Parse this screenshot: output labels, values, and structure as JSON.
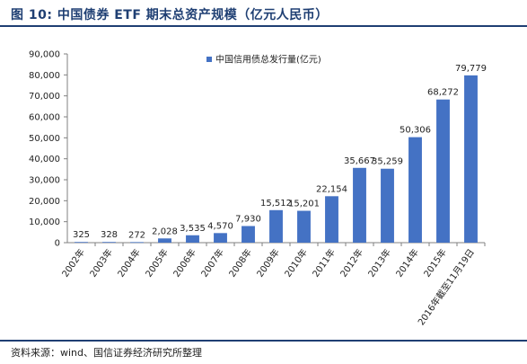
{
  "header": {
    "title": "图 10:  中国债券 ETF 期末总资产规模（亿元人民币）"
  },
  "footer": {
    "source": "资料来源：wind、国信证券经济研究所整理"
  },
  "chart_data": {
    "type": "bar",
    "categories": [
      "2002年",
      "2003年",
      "2004年",
      "2005年",
      "2006年",
      "2007年",
      "2008年",
      "2009年",
      "2010年",
      "2011年",
      "2012年",
      "2013年",
      "2014年",
      "2015年",
      "2016年截至11月19日"
    ],
    "series": [
      {
        "name": "中国信用债总发行量(亿元)",
        "values": [
          325,
          328,
          272,
          2028,
          3535,
          4570,
          7930,
          15512,
          15201,
          22154,
          35667,
          35259,
          50306,
          68272,
          79779
        ],
        "labels": [
          "325",
          "328",
          "272",
          "2,028",
          "3,535",
          "4,570",
          "7,930",
          "15,512",
          "15,201",
          "22,154",
          "35,667",
          "35,259",
          "50,306",
          "68,272",
          "79,779"
        ]
      }
    ],
    "yticks": [
      "0",
      "10,000",
      "20,000",
      "30,000",
      "40,000",
      "50,000",
      "60,000",
      "70,000",
      "80,000",
      "90,000"
    ],
    "ylim": [
      0,
      90000
    ],
    "legend_position": "top-left",
    "bar_color": "#4472c4"
  }
}
